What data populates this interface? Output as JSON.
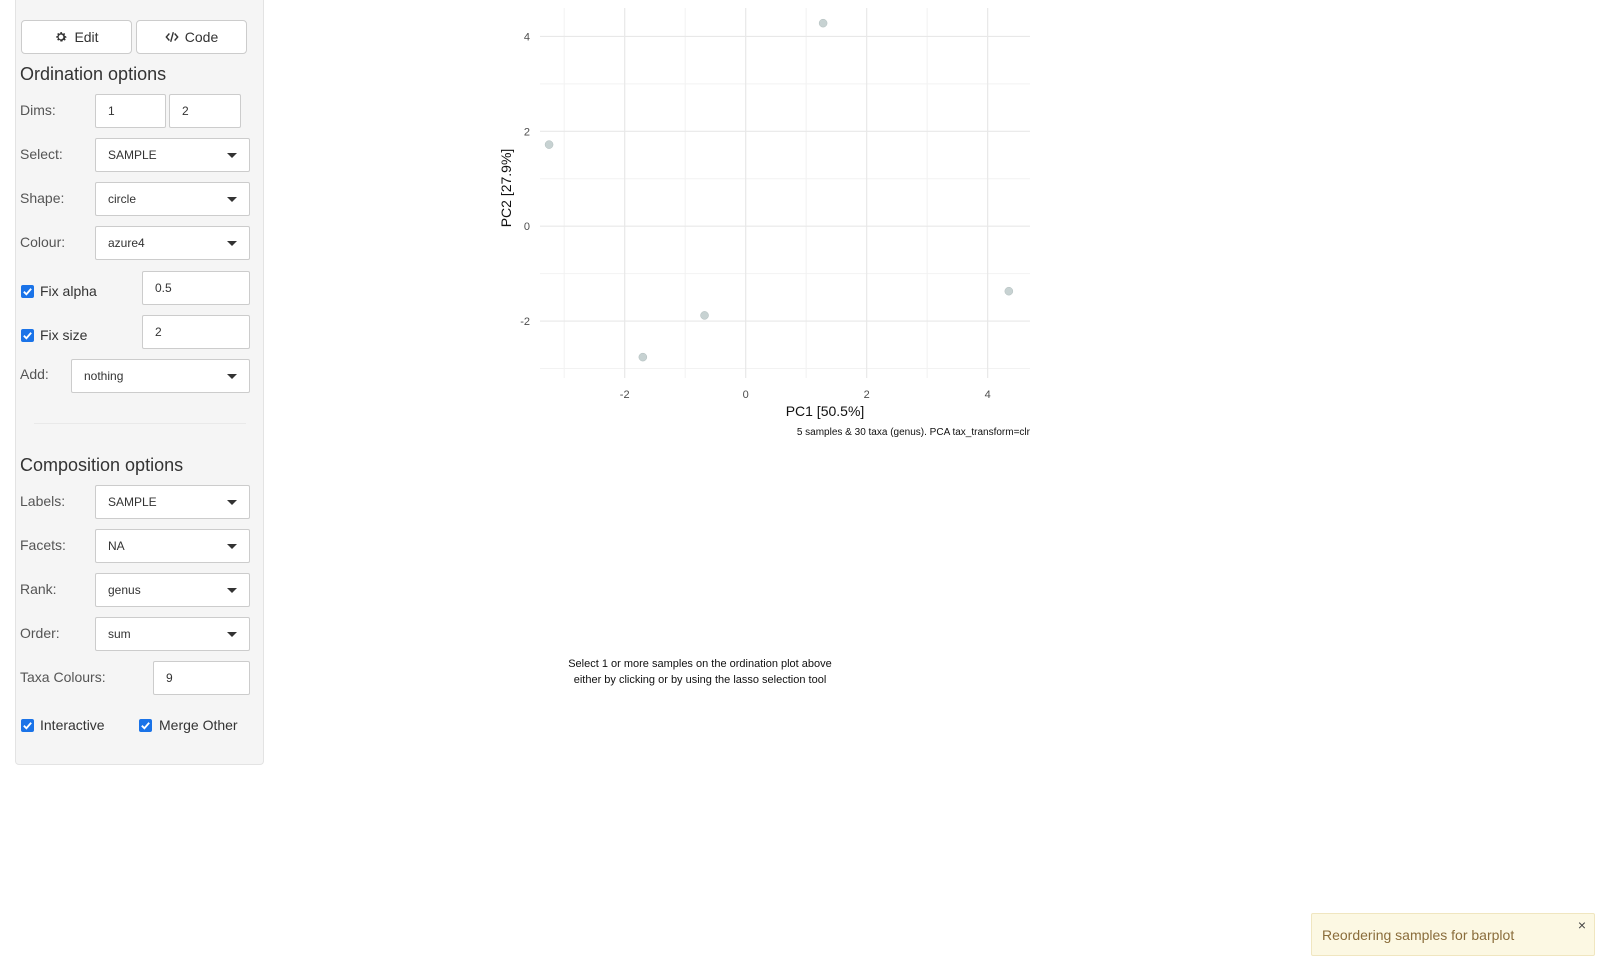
{
  "toolbar": {
    "edit_label": "Edit",
    "code_label": "Code"
  },
  "ordination": {
    "heading": "Ordination options",
    "dims": {
      "label": "Dims:",
      "dim1": "1",
      "dim2": "2"
    },
    "select": {
      "label": "Select:",
      "value": "SAMPLE"
    },
    "shape": {
      "label": "Shape:",
      "value": "circle"
    },
    "colour": {
      "label": "Colour:",
      "value": "azure4"
    },
    "fix_alpha": {
      "label": "Fix alpha",
      "value": "0.5",
      "checked": true
    },
    "fix_size": {
      "label": "Fix size",
      "value": "2",
      "checked": true
    },
    "add": {
      "label": "Add:",
      "value": "nothing"
    }
  },
  "composition": {
    "heading": "Composition options",
    "labels": {
      "label": "Labels:",
      "value": "SAMPLE"
    },
    "facets": {
      "label": "Facets:",
      "value": "NA"
    },
    "rank": {
      "label": "Rank:",
      "value": "genus"
    },
    "order": {
      "label": "Order:",
      "value": "sum"
    },
    "taxa_colours": {
      "label": "Taxa Colours:",
      "value": "9"
    },
    "interactive": {
      "label": "Interactive",
      "checked": true
    },
    "merge_other": {
      "label": "Merge Other",
      "checked": true
    }
  },
  "chart_data": {
    "type": "scatter",
    "xlabel": "PC1 [50.5%]",
    "ylabel": "PC2 [27.9%]",
    "caption": "5 samples & 30 taxa (genus). PCA tax_transform=clr",
    "xlim": [
      -3.4,
      4.7
    ],
    "ylim": [
      -3.2,
      4.6
    ],
    "x_ticks": [
      -2,
      0,
      2,
      4
    ],
    "y_ticks": [
      -2,
      0,
      2,
      4
    ],
    "grid": true,
    "point_color": "#c1cdcd",
    "points": [
      {
        "x": 1.28,
        "y": 4.28
      },
      {
        "x": -3.25,
        "y": 1.72
      },
      {
        "x": 4.35,
        "y": -1.37
      },
      {
        "x": -0.68,
        "y": -1.88
      },
      {
        "x": -1.7,
        "y": -2.76
      }
    ]
  },
  "composition_hint": {
    "line1": "Select 1 or more samples on the ordination plot above",
    "line2": "either by clicking or by using the lasso selection tool"
  },
  "notification": {
    "text": "Reordering samples for barplot",
    "close": "×"
  },
  "colors": {
    "accent": "#1a73e8",
    "toast_bg": "#fcf8e3",
    "toast_text": "#8a6d3b"
  }
}
